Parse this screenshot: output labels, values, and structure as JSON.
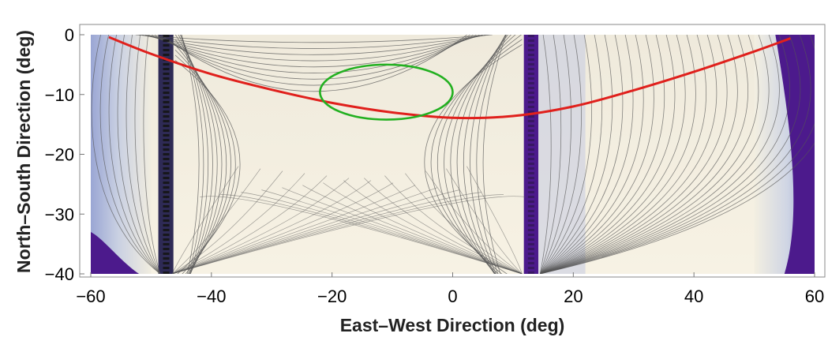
{
  "chart_data": {
    "type": "heatmap",
    "title": "",
    "xlabel": "East–West Direction (deg)",
    "ylabel": "North–South Direction (deg)",
    "xlim": [
      -60,
      60
    ],
    "ylim": [
      -40,
      0
    ],
    "x_ticks": [
      -60,
      -40,
      -20,
      0,
      20,
      40,
      60
    ],
    "y_ticks": [
      0,
      -10,
      -20,
      -30,
      -40
    ],
    "x_tick_labels": [
      "−60",
      "−40",
      "−20",
      "0",
      "20",
      "40",
      "60"
    ],
    "y_tick_labels": [
      "0",
      "−10",
      "−20",
      "−30",
      "−40"
    ],
    "grid": false,
    "field": {
      "description_colors": {
        "low": "#4c1a8c",
        "mid": "#b8c2de",
        "high": "#f4efdf"
      },
      "singular_lines_x": [
        -47.5,
        13
      ],
      "contour_line_color": "#555555"
    },
    "series": [
      {
        "style": "red-curve",
        "color": "#e0201c",
        "x": [
          -57,
          -50,
          -40,
          -30,
          -20,
          -10,
          0,
          10,
          20,
          30,
          40,
          50,
          56
        ],
        "y": [
          -0.4,
          -3.2,
          -6.6,
          -9.2,
          -11.4,
          -13.0,
          -13.9,
          -13.6,
          -12.0,
          -9.3,
          -6.2,
          -2.8,
          -0.6
        ]
      },
      {
        "style": "green-ellipse",
        "color": "#22b020",
        "center": [
          -11,
          -9.6
        ],
        "radii": [
          11,
          4.6
        ]
      }
    ]
  }
}
